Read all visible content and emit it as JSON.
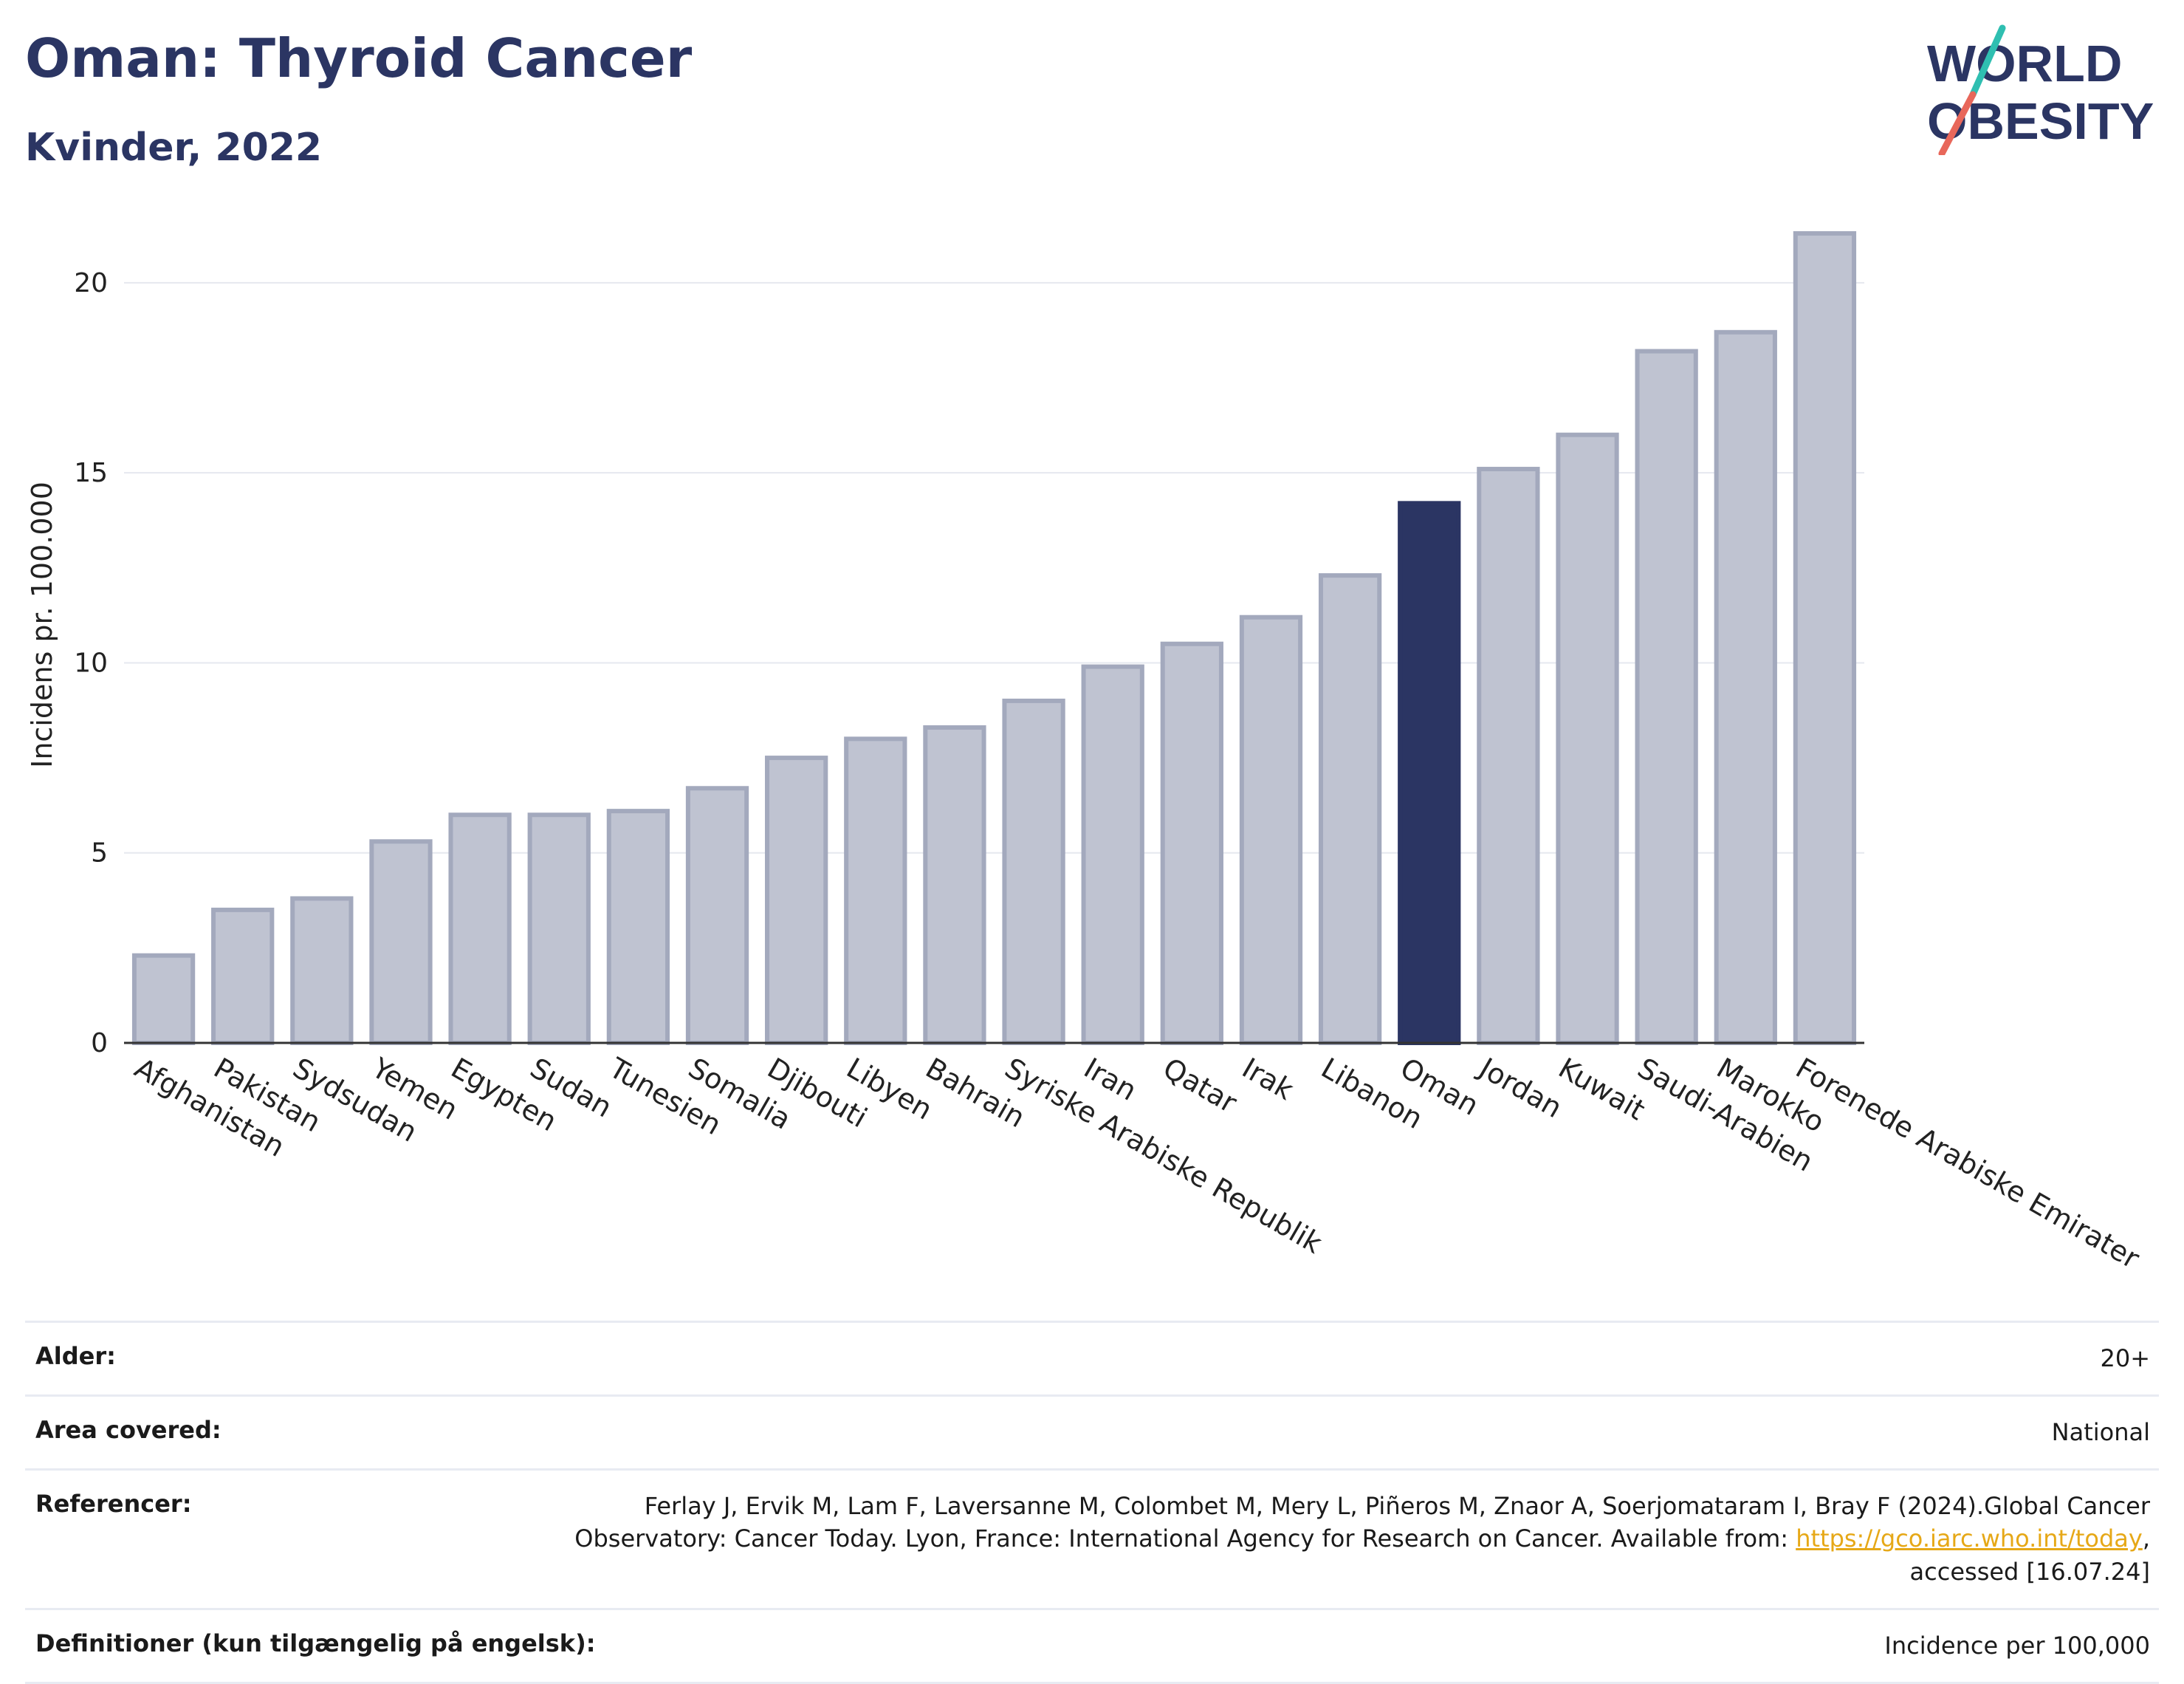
{
  "header": {
    "title": "Oman: Thyroid Cancer",
    "subtitle": "Kvinder, 2022"
  },
  "logo": {
    "line1": "WORLD",
    "line2": "OBESITY",
    "slash_colors": [
      "#2fbfb1",
      "#e8675a"
    ]
  },
  "colors": {
    "bar": "#bfc3d1",
    "bar_border": "#a3a9bd",
    "highlight": "#2b3563",
    "grid": "#e6e8ef",
    "title": "#2b3563",
    "link": "#e6a817"
  },
  "chart_data": {
    "type": "bar",
    "ylabel": "Incidens pr. 100.000",
    "xlabel": "",
    "ylim": [
      0,
      22
    ],
    "yticks": [
      0,
      5,
      10,
      15,
      20
    ],
    "grid": true,
    "highlight": "Oman",
    "categories": [
      "Afghanistan",
      "Pakistan",
      "Sydsudan",
      "Yemen",
      "Egypten",
      "Sudan",
      "Tunesien",
      "Somalia",
      "Djibouti",
      "Libyen",
      "Bahrain",
      "Syriske Arabiske Republik",
      "Iran",
      "Qatar",
      "Irak",
      "Libanon",
      "Oman",
      "Jordan",
      "Kuwait",
      "Saudi-Arabien",
      "Marokko",
      "Forenede Arabiske Emirater"
    ],
    "values": [
      2.3,
      3.5,
      3.8,
      5.3,
      6.0,
      6.0,
      6.1,
      6.7,
      7.5,
      8.0,
      8.3,
      9.0,
      9.9,
      10.5,
      11.2,
      12.3,
      14.2,
      15.1,
      16.0,
      18.2,
      18.7,
      21.3
    ]
  },
  "meta": {
    "age_label": "Alder:",
    "age_value": "20+",
    "area_label": "Area covered:",
    "area_value": "National",
    "ref_label": "Referencer:",
    "ref_text_1": "Ferlay J, Ervik M, Lam F, Laversanne M, Colombet M, Mery L, Piñeros M, Znaor A, Soerjomataram I, Bray F (2024).Global Cancer Observatory: Cancer Today. Lyon, France: International Agency for Research on Cancer. Available from: ",
    "ref_link": "https://gco.iarc.who.int/today",
    "ref_text_2": ", accessed [16.07.24]",
    "def_label": "Definitioner (kun tilgængelig på engelsk):",
    "def_value": "Incidence per 100,000"
  }
}
